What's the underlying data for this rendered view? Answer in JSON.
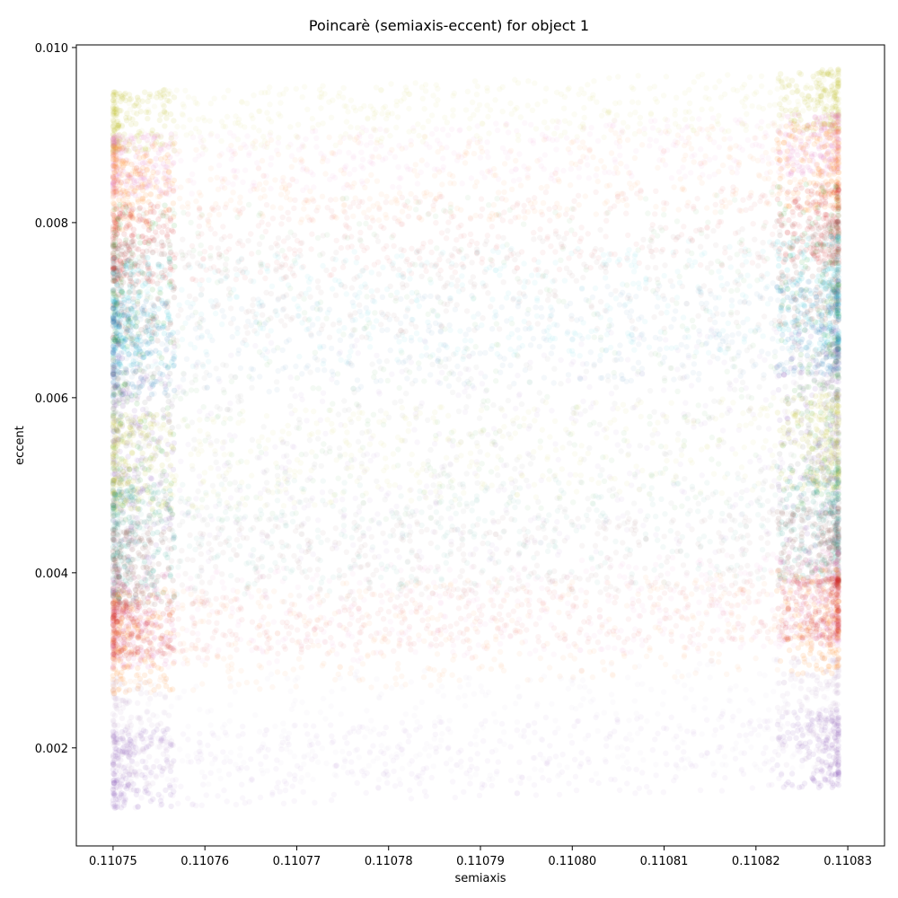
{
  "chart_data": {
    "type": "scatter",
    "title": "Poincarè (semiaxis-eccent) for object 1",
    "xlabel": "semiaxis",
    "ylabel": "eccent",
    "xlim": [
      0.110746,
      0.110834
    ],
    "ylim": [
      0.00088,
      0.01003
    ],
    "xticks": [
      0.11075,
      0.11076,
      0.11077,
      0.11078,
      0.11079,
      0.1108,
      0.11081,
      0.11082,
      0.11083
    ],
    "xtick_labels": [
      "0.11075",
      "0.11076",
      "0.11077",
      "0.11078",
      "0.11079",
      "0.11080",
      "0.11081",
      "0.11082",
      "0.11083"
    ],
    "yticks": [
      0.002,
      0.004,
      0.006,
      0.008,
      0.01
    ],
    "ytick_labels": [
      "0.002",
      "0.004",
      "0.006",
      "0.008",
      "0.010"
    ],
    "grid": false,
    "legend": "none",
    "x_range_of_points": [
      0.11075,
      0.110829
    ],
    "series_bands": [
      {
        "color": "#bcbd22",
        "e_low": 0.0088,
        "e_high": 0.0095
      },
      {
        "color": "#e377c2",
        "e_low": 0.0083,
        "e_high": 0.009
      },
      {
        "color": "#ff7f0e",
        "e_low": 0.0079,
        "e_high": 0.0089
      },
      {
        "color": "#d62728",
        "e_low": 0.0073,
        "e_high": 0.0082
      },
      {
        "color": "#8c564b",
        "e_low": 0.0066,
        "e_high": 0.0078
      },
      {
        "color": "#17becf",
        "e_low": 0.0063,
        "e_high": 0.0076
      },
      {
        "color": "#1f77b4",
        "e_low": 0.006,
        "e_high": 0.0071
      },
      {
        "color": "#2ca02c",
        "e_low": 0.0045,
        "e_high": 0.0082
      },
      {
        "color": "#7f7f7f",
        "e_low": 0.0043,
        "e_high": 0.0064
      },
      {
        "color": "#9467bd",
        "e_low": 0.004,
        "e_high": 0.0066
      },
      {
        "color": "#bcbd22",
        "e_low": 0.0047,
        "e_high": 0.0058
      },
      {
        "color": "#1f9e89",
        "e_low": 0.0037,
        "e_high": 0.005
      },
      {
        "color": "#8c564b",
        "e_low": 0.0036,
        "e_high": 0.0045
      },
      {
        "color": "#e377c2",
        "e_low": 0.0029,
        "e_high": 0.004
      },
      {
        "color": "#ff7f0e",
        "e_low": 0.0026,
        "e_high": 0.0038
      },
      {
        "color": "#d62728",
        "e_low": 0.003,
        "e_high": 0.0037
      },
      {
        "color": "#c5b0d5",
        "e_low": 0.0015,
        "e_high": 0.0028
      },
      {
        "color": "#9467bd",
        "e_low": 0.0013,
        "e_high": 0.0022
      }
    ]
  }
}
